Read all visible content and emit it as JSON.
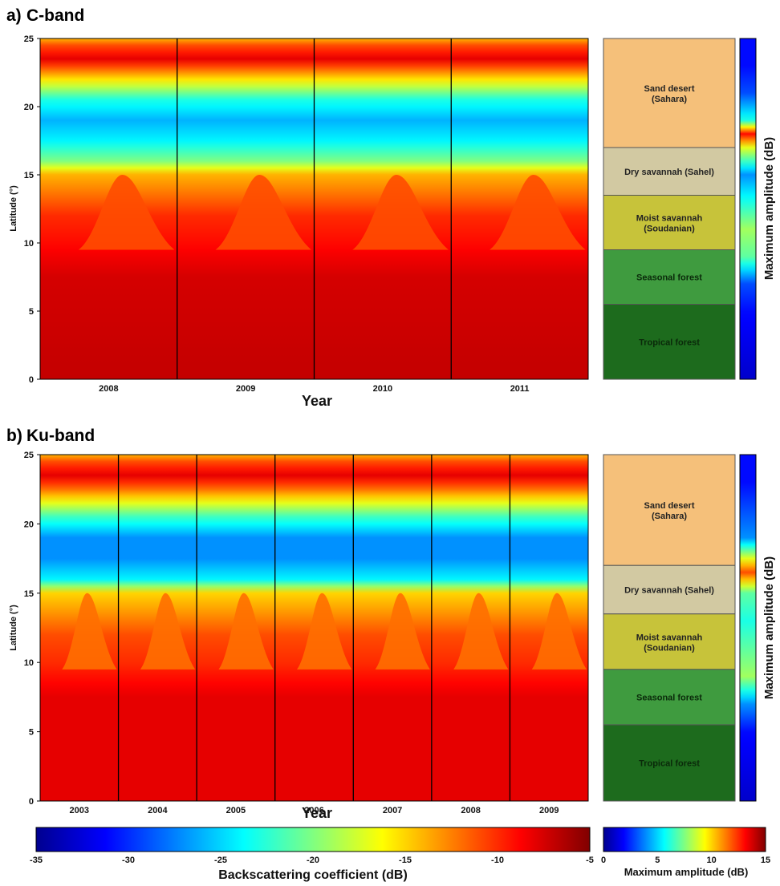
{
  "chart_data": [
    {
      "type": "heatmap",
      "panel_label": "a)",
      "title": "C-band",
      "xlabel": "Year",
      "ylabel": "Latitude (°)",
      "x_tick_labels": [
        "2008",
        "2009",
        "2010",
        "2011"
      ],
      "y_ticks": [
        0,
        5,
        10,
        15,
        20,
        25
      ],
      "ylim": [
        0,
        25
      ],
      "colorbar_label": "Backscattering coefficient (dB)",
      "clim": [
        -35,
        -5
      ],
      "mean_backscatter_profile": [
        {
          "lat": 0,
          "value": -7
        },
        {
          "lat": 7.5,
          "value": -7.5
        },
        {
          "lat": 10,
          "value": -9
        },
        {
          "lat": 12,
          "value": -10
        },
        {
          "lat": 15,
          "value": -14
        },
        {
          "lat": 16,
          "value": -20
        },
        {
          "lat": 17.5,
          "value": -24
        },
        {
          "lat": 19,
          "value": -26
        },
        {
          "lat": 20.5,
          "value": -23
        },
        {
          "lat": 21.5,
          "value": -18
        },
        {
          "lat": 22.5,
          "value": -13
        },
        {
          "lat": 23.5,
          "value": -8
        },
        {
          "lat": 24.5,
          "value": -11
        },
        {
          "lat": 25,
          "value": -14
        }
      ],
      "seasonal_peak_latitude": 15
    },
    {
      "type": "heatmap",
      "panel_label": "b)",
      "title": "Ku-band",
      "xlabel": "Year",
      "ylabel": "Latitude (°)",
      "x_tick_labels": [
        "2003",
        "2004",
        "2005",
        "2006",
        "2007",
        "2008",
        "2009"
      ],
      "y_ticks": [
        0,
        5,
        10,
        15,
        20,
        25
      ],
      "ylim": [
        0,
        25
      ],
      "colorbar_label": "Backscattering coefficient (dB)",
      "clim": [
        -35,
        -5
      ],
      "mean_backscatter_profile": [
        {
          "lat": 0,
          "value": -8
        },
        {
          "lat": 7.5,
          "value": -8
        },
        {
          "lat": 10,
          "value": -10
        },
        {
          "lat": 12,
          "value": -11
        },
        {
          "lat": 15,
          "value": -15
        },
        {
          "lat": 16,
          "value": -24
        },
        {
          "lat": 17.5,
          "value": -27
        },
        {
          "lat": 19,
          "value": -27
        },
        {
          "lat": 20.5,
          "value": -22
        },
        {
          "lat": 21.5,
          "value": -17
        },
        {
          "lat": 22.5,
          "value": -12
        },
        {
          "lat": 23.5,
          "value": -8
        },
        {
          "lat": 24.5,
          "value": -11
        },
        {
          "lat": 25,
          "value": -14
        }
      ],
      "seasonal_peak_latitude": 15
    }
  ],
  "vegetation_zones": [
    {
      "name": "Sand desert\n(Sahara)",
      "lat_from": 17,
      "lat_to": 25,
      "color": "#f5c07a"
    },
    {
      "name": "Dry savannah (Sahel)",
      "lat_from": 13.5,
      "lat_to": 17,
      "color": "#d2c9a2"
    },
    {
      "name": "Moist savannah\n(Soudanian)",
      "lat_from": 9.5,
      "lat_to": 13.5,
      "color": "#c7c33a"
    },
    {
      "name": "Seasonal forest",
      "lat_from": 5.5,
      "lat_to": 9.5,
      "color": "#3f9b3f"
    },
    {
      "name": "Tropical forest",
      "lat_from": 0,
      "lat_to": 5.5,
      "color": "#1d6b1d"
    }
  ],
  "amplitude_colorbar": {
    "label": "Maximum amplitude (dB)",
    "ticks": [
      0,
      5,
      10,
      15
    ],
    "clim": [
      0,
      15
    ]
  },
  "amplitude_strip_label": "Maximum amplitude (dB)",
  "backscatter_colorbar": {
    "label": "Backscattering coefficient (dB)",
    "ticks": [
      -35,
      -30,
      -25,
      -20,
      -15,
      -10,
      -5
    ]
  },
  "amplitude_profiles": {
    "a": [
      {
        "lat": 0,
        "value": 1
      },
      {
        "lat": 5,
        "value": 2
      },
      {
        "lat": 7,
        "value": 3
      },
      {
        "lat": 9,
        "value": 7
      },
      {
        "lat": 11,
        "value": 8
      },
      {
        "lat": 13,
        "value": 6
      },
      {
        "lat": 15,
        "value": 4
      },
      {
        "lat": 17,
        "value": 9
      },
      {
        "lat": 18,
        "value": 13
      },
      {
        "lat": 19,
        "value": 6
      },
      {
        "lat": 21,
        "value": 3
      },
      {
        "lat": 23,
        "value": 2
      },
      {
        "lat": 25,
        "value": 2
      }
    ],
    "b": [
      {
        "lat": 0,
        "value": 1
      },
      {
        "lat": 5,
        "value": 2
      },
      {
        "lat": 7,
        "value": 4
      },
      {
        "lat": 9,
        "value": 8
      },
      {
        "lat": 11,
        "value": 7
      },
      {
        "lat": 13,
        "value": 6
      },
      {
        "lat": 15,
        "value": 7
      },
      {
        "lat": 16.5,
        "value": 12
      },
      {
        "lat": 17.5,
        "value": 9
      },
      {
        "lat": 19,
        "value": 4
      },
      {
        "lat": 21,
        "value": 3
      },
      {
        "lat": 23,
        "value": 2
      },
      {
        "lat": 25,
        "value": 2
      }
    ]
  },
  "colors": {
    "jet": [
      "#00008f",
      "#0000ff",
      "#0080ff",
      "#00ffff",
      "#80ff80",
      "#ffff00",
      "#ff8000",
      "#ff0000",
      "#800000"
    ]
  }
}
